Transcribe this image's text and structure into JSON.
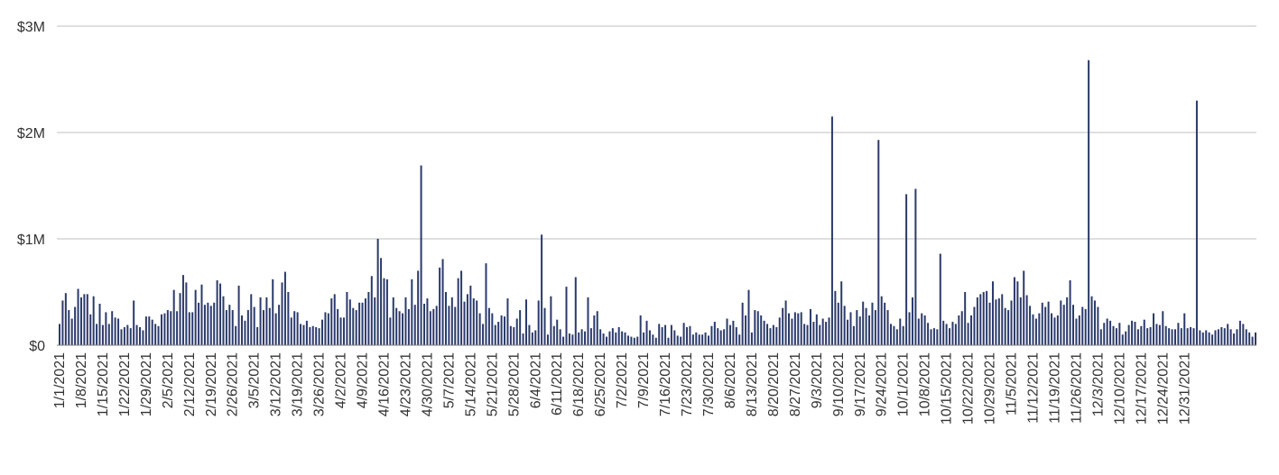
{
  "chart_data": {
    "type": "bar",
    "title": "",
    "xlabel": "",
    "ylabel": "",
    "ylim": [
      0,
      3000000
    ],
    "yticks": [
      {
        "value": 0,
        "label": "$0"
      },
      {
        "value": 1000000,
        "label": "$1M"
      },
      {
        "value": 2000000,
        "label": "$2M"
      },
      {
        "value": 3000000,
        "label": "$3M"
      }
    ],
    "x_start": "1/1/2021",
    "x_end": "12/31/2021",
    "x_tick_labels": [
      "1/1/2021",
      "1/8/2021",
      "1/15/2021",
      "1/22/2021",
      "1/29/2021",
      "2/5/2021",
      "2/12/2021",
      "2/19/2021",
      "2/26/2021",
      "3/5/2021",
      "3/12/2021",
      "3/19/2021",
      "3/26/2021",
      "4/2/2021",
      "4/9/2021",
      "4/16/2021",
      "4/23/2021",
      "4/30/2021",
      "5/7/2021",
      "5/14/2021",
      "5/21/2021",
      "5/28/2021",
      "6/4/2021",
      "6/11/2021",
      "6/18/2021",
      "6/25/2021",
      "7/2/2021",
      "7/9/2021",
      "7/16/2021",
      "7/23/2021",
      "7/30/2021",
      "8/6/2021",
      "8/13/2021",
      "8/20/2021",
      "8/27/2021",
      "9/3/2021",
      "9/10/2021",
      "9/17/2021",
      "9/24/2021",
      "10/1/2021",
      "10/8/2021",
      "10/15/2021",
      "10/22/2021",
      "10/29/2021",
      "11/5/2021",
      "11/12/2021",
      "11/19/2021",
      "11/26/2021",
      "12/3/2021",
      "12/10/2021",
      "12/17/2021",
      "12/24/2021",
      "12/31/2021"
    ],
    "bar_color": "#2b3a6b",
    "grid": true,
    "legend": "none",
    "values": [
      200000,
      420000,
      490000,
      330000,
      250000,
      360000,
      530000,
      450000,
      480000,
      480000,
      290000,
      460000,
      200000,
      390000,
      190000,
      310000,
      200000,
      320000,
      260000,
      250000,
      150000,
      170000,
      190000,
      160000,
      420000,
      190000,
      170000,
      140000,
      270000,
      270000,
      240000,
      200000,
      180000,
      290000,
      300000,
      330000,
      320000,
      520000,
      320000,
      490000,
      660000,
      590000,
      310000,
      310000,
      520000,
      400000,
      570000,
      380000,
      400000,
      370000,
      400000,
      610000,
      580000,
      460000,
      330000,
      380000,
      330000,
      180000,
      560000,
      280000,
      230000,
      330000,
      480000,
      360000,
      170000,
      450000,
      330000,
      450000,
      350000,
      620000,
      300000,
      380000,
      590000,
      690000,
      500000,
      260000,
      320000,
      310000,
      200000,
      190000,
      230000,
      170000,
      180000,
      170000,
      160000,
      240000,
      310000,
      300000,
      440000,
      480000,
      340000,
      260000,
      260000,
      500000,
      430000,
      350000,
      330000,
      400000,
      400000,
      440000,
      500000,
      650000,
      450000,
      1000000,
      820000,
      630000,
      620000,
      260000,
      450000,
      350000,
      320000,
      300000,
      450000,
      340000,
      620000,
      380000,
      700000,
      1690000,
      390000,
      440000,
      320000,
      340000,
      370000,
      730000,
      810000,
      500000,
      370000,
      450000,
      360000,
      630000,
      700000,
      410000,
      480000,
      560000,
      440000,
      420000,
      300000,
      200000,
      770000,
      350000,
      300000,
      190000,
      220000,
      280000,
      270000,
      440000,
      180000,
      170000,
      250000,
      330000,
      110000,
      430000,
      190000,
      120000,
      140000,
      420000,
      1040000,
      350000,
      100000,
      460000,
      180000,
      240000,
      150000,
      80000,
      550000,
      110000,
      100000,
      640000,
      120000,
      150000,
      130000,
      450000,
      160000,
      280000,
      320000,
      150000,
      110000,
      80000,
      130000,
      160000,
      120000,
      170000,
      130000,
      120000,
      90000,
      80000,
      70000,
      80000,
      280000,
      120000,
      230000,
      140000,
      100000,
      70000,
      200000,
      170000,
      190000,
      70000,
      190000,
      140000,
      90000,
      80000,
      210000,
      170000,
      180000,
      100000,
      120000,
      100000,
      100000,
      120000,
      90000,
      180000,
      220000,
      160000,
      140000,
      150000,
      250000,
      190000,
      230000,
      170000,
      100000,
      400000,
      280000,
      520000,
      120000,
      330000,
      320000,
      280000,
      230000,
      200000,
      160000,
      190000,
      170000,
      260000,
      350000,
      420000,
      300000,
      250000,
      310000,
      300000,
      310000,
      200000,
      190000,
      340000,
      220000,
      290000,
      190000,
      250000,
      220000,
      260000,
      2150000,
      510000,
      400000,
      600000,
      370000,
      240000,
      310000,
      180000,
      330000,
      270000,
      410000,
      350000,
      280000,
      400000,
      330000,
      1930000,
      460000,
      400000,
      330000,
      200000,
      180000,
      150000,
      250000,
      180000,
      1420000,
      310000,
      450000,
      1470000,
      250000,
      300000,
      280000,
      210000,
      150000,
      160000,
      150000,
      860000,
      230000,
      200000,
      160000,
      220000,
      200000,
      280000,
      320000,
      500000,
      210000,
      280000,
      360000,
      450000,
      480000,
      500000,
      510000,
      400000,
      600000,
      430000,
      440000,
      480000,
      350000,
      330000,
      420000,
      640000,
      600000,
      450000,
      700000,
      470000,
      370000,
      290000,
      250000,
      300000,
      400000,
      360000,
      410000,
      300000,
      260000,
      280000,
      420000,
      380000,
      450000,
      610000,
      380000,
      250000,
      280000,
      360000,
      340000,
      2680000,
      460000,
      420000,
      360000,
      150000,
      210000,
      250000,
      230000,
      180000,
      160000,
      210000,
      100000,
      130000,
      190000,
      230000,
      220000,
      150000,
      180000,
      240000,
      160000,
      170000,
      300000,
      200000,
      190000,
      320000,
      180000,
      160000,
      150000,
      150000,
      210000,
      160000,
      300000,
      160000,
      170000,
      160000,
      2300000,
      140000,
      120000,
      140000,
      120000,
      100000,
      140000,
      150000,
      170000,
      160000,
      200000,
      150000,
      110000,
      150000,
      230000,
      200000,
      150000,
      120000,
      80000,
      120000
    ]
  }
}
